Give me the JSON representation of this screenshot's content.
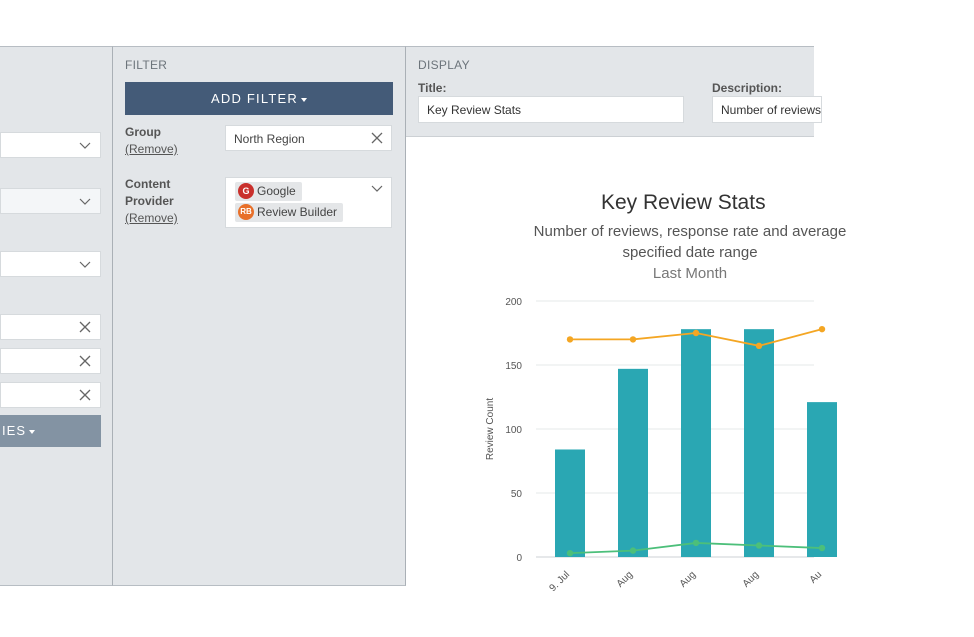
{
  "left": {
    "add_button_label": "IES"
  },
  "filter": {
    "section_title": "FILTER",
    "add_filter_label": "ADD FILTER",
    "group": {
      "label": "Group",
      "remove": "(Remove)",
      "value": "North Region"
    },
    "content_provider": {
      "label_line1": "Content",
      "label_line2": "Provider",
      "remove": "(Remove)",
      "chips": [
        {
          "icon": "google-icon",
          "icon_text": "G",
          "label": "Google",
          "color": "#c9302c"
        },
        {
          "icon": "review-builder-icon",
          "icon_text": "RB",
          "label": "Review Builder",
          "color": "#e8702a"
        }
      ]
    }
  },
  "display": {
    "section_title": "DISPLAY",
    "title_label": "Title:",
    "title_value": "Key Review Stats",
    "description_label": "Description:",
    "description_value": "Number of reviews"
  },
  "chart_data": {
    "type": "bar",
    "title": "Key Review Stats",
    "subtitle_line1": "Number of reviews, response rate and average",
    "subtitle_line2": "specified date range",
    "subtitle_line3": "Last Month",
    "ylabel": "Review Count",
    "ylim": [
      0,
      200
    ],
    "yticks": [
      0,
      50,
      100,
      150,
      200
    ],
    "categories": [
      "9. Jul",
      "Aug",
      "Aug",
      "Aug",
      "Au"
    ],
    "series": [
      {
        "kind": "bar",
        "values": [
          84,
          147,
          178,
          178,
          121
        ],
        "color": "#2aa7b3"
      },
      {
        "kind": "line",
        "values": [
          170,
          170,
          175,
          165,
          178
        ],
        "color": "#f4a623"
      },
      {
        "kind": "line",
        "values": [
          3,
          5,
          11,
          9,
          7
        ],
        "color": "#4cbf7a"
      }
    ]
  }
}
